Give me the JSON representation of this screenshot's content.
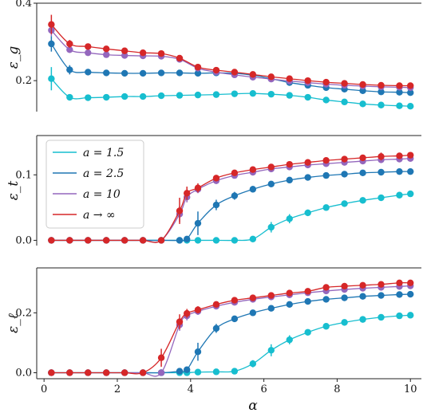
{
  "chart_data": {
    "type": "line",
    "xlabel": "α",
    "x_ticks": [
      0,
      2,
      4,
      6,
      8,
      10
    ],
    "xlim": [
      -0.2,
      10.3
    ],
    "legend": {
      "placement": "upper-left of middle panel",
      "entries": [
        "a = 1.5",
        "a = 2.5",
        "a = 10",
        "a → ∞"
      ]
    },
    "series_colors": [
      "#17becf",
      "#1f77b4",
      "#9467bd",
      "#d62728"
    ],
    "panels": [
      {
        "ylabel": "ε_g",
        "ylim": [
          0.12,
          0.4
        ],
        "y_ticks": [
          0.2,
          0.4
        ],
        "y_tick_labels": [
          "0.2",
          "0.4"
        ],
        "x": [
          0.2,
          0.7,
          1.2,
          1.7,
          2.2,
          2.7,
          3.2,
          3.7,
          4.2,
          4.7,
          5.2,
          5.7,
          6.2,
          6.7,
          7.2,
          7.7,
          8.2,
          8.7,
          9.2,
          9.7,
          10.0
        ],
        "series": [
          {
            "label": "a = 1.5",
            "color": "#17becf",
            "values": [
              0.205,
              0.157,
              0.156,
              0.157,
              0.159,
              0.159,
              0.161,
              0.162,
              0.163,
              0.164,
              0.166,
              0.167,
              0.165,
              0.162,
              0.157,
              0.15,
              0.145,
              0.14,
              0.137,
              0.135,
              0.134
            ],
            "errors": [
              0.03,
              0.006,
              0.005,
              0.004,
              0.004,
              0.004,
              0.004,
              0.004,
              0.004,
              0.004,
              0.004,
              0.004,
              0.004,
              0.004,
              0.004,
              0.004,
              0.004,
              0.004,
              0.004,
              0.004,
              0.004
            ]
          },
          {
            "label": "a = 2.5",
            "color": "#1f77b4",
            "values": [
              0.295,
              0.228,
              0.222,
              0.22,
              0.219,
              0.219,
              0.22,
              0.22,
              0.219,
              0.22,
              0.219,
              0.214,
              0.205,
              0.195,
              0.188,
              0.182,
              0.178,
              0.174,
              0.171,
              0.17,
              0.169
            ],
            "errors": [
              0.02,
              0.012,
              0.008,
              0.006,
              0.005,
              0.005,
              0.005,
              0.005,
              0.005,
              0.005,
              0.005,
              0.005,
              0.005,
              0.005,
              0.005,
              0.005,
              0.005,
              0.005,
              0.005,
              0.005,
              0.005
            ]
          },
          {
            "label": "a = 10",
            "color": "#9467bd",
            "values": [
              0.33,
              0.28,
              0.272,
              0.267,
              0.265,
              0.264,
              0.263,
              0.255,
              0.232,
              0.222,
              0.215,
              0.209,
              0.204,
              0.199,
              0.195,
              0.191,
              0.188,
              0.186,
              0.184,
              0.183,
              0.182
            ],
            "errors": [
              0.015,
              0.008,
              0.006,
              0.005,
              0.005,
              0.005,
              0.005,
              0.005,
              0.005,
              0.005,
              0.005,
              0.005,
              0.005,
              0.005,
              0.005,
              0.005,
              0.005,
              0.005,
              0.005,
              0.005,
              0.005
            ]
          },
          {
            "label": "a → ∞",
            "color": "#d62728",
            "values": [
              0.345,
              0.295,
              0.288,
              0.282,
              0.277,
              0.272,
              0.27,
              0.258,
              0.235,
              0.227,
              0.222,
              0.216,
              0.21,
              0.205,
              0.2,
              0.196,
              0.193,
              0.19,
              0.188,
              0.187,
              0.187
            ],
            "errors": [
              0.025,
              0.01,
              0.007,
              0.006,
              0.005,
              0.005,
              0.005,
              0.005,
              0.005,
              0.005,
              0.005,
              0.005,
              0.005,
              0.005,
              0.005,
              0.005,
              0.005,
              0.005,
              0.005,
              0.005,
              0.005
            ]
          }
        ]
      },
      {
        "ylabel": "ε_t",
        "ylim": [
          -0.008,
          0.16
        ],
        "y_ticks": [
          0.0,
          0.1
        ],
        "y_tick_labels": [
          "0.0",
          "0.1"
        ],
        "x": [
          0.2,
          0.7,
          1.2,
          1.7,
          2.2,
          2.7,
          3.2,
          3.7,
          3.9,
          4.2,
          4.7,
          5.2,
          5.7,
          6.2,
          6.7,
          7.2,
          7.7,
          8.2,
          8.7,
          9.2,
          9.7,
          10.0
        ],
        "series": [
          {
            "label": "a = 1.5",
            "color": "#17becf",
            "values": [
              0,
              0,
              0,
              0,
              0,
              0,
              0,
              0,
              0,
              0,
              0,
              0,
              0.002,
              0.02,
              0.033,
              0.042,
              0.05,
              0.056,
              0.061,
              0.065,
              0.069,
              0.071
            ],
            "errors": [
              0,
              0,
              0,
              0,
              0,
              0,
              0,
              0,
              0,
              0,
              0,
              0,
              0.003,
              0.008,
              0.007,
              0.005,
              0.004,
              0.004,
              0.004,
              0.004,
              0.004,
              0.004
            ]
          },
          {
            "label": "a = 2.5",
            "color": "#1f77b4",
            "values": [
              0,
              0,
              0,
              0,
              0,
              0,
              0,
              0,
              0.002,
              0.026,
              0.054,
              0.068,
              0.078,
              0.086,
              0.092,
              0.096,
              0.099,
              0.101,
              0.103,
              0.104,
              0.105,
              0.105
            ],
            "errors": [
              0,
              0,
              0,
              0,
              0,
              0,
              0,
              0,
              0.004,
              0.018,
              0.008,
              0.006,
              0.005,
              0.004,
              0.004,
              0.004,
              0.004,
              0.004,
              0.004,
              0.004,
              0.004,
              0.004
            ]
          },
          {
            "label": "a = 10",
            "color": "#9467bd",
            "values": [
              0,
              0,
              0,
              0,
              0,
              0,
              0,
              0.04,
              0.066,
              0.078,
              0.091,
              0.099,
              0.104,
              0.109,
              0.112,
              0.115,
              0.117,
              0.119,
              0.121,
              0.123,
              0.124,
              0.125
            ],
            "errors": [
              0,
              0,
              0,
              0,
              0,
              0,
              0,
              0.012,
              0.008,
              0.006,
              0.005,
              0.004,
              0.004,
              0.004,
              0.004,
              0.004,
              0.004,
              0.004,
              0.004,
              0.004,
              0.004,
              0.004
            ]
          },
          {
            "label": "a → ∞",
            "color": "#d62728",
            "values": [
              0,
              0,
              0,
              0,
              0,
              0,
              0,
              0.045,
              0.072,
              0.08,
              0.095,
              0.103,
              0.108,
              0.112,
              0.116,
              0.119,
              0.122,
              0.124,
              0.126,
              0.128,
              0.129,
              0.13
            ],
            "errors": [
              0,
              0,
              0,
              0,
              0,
              0,
              0,
              0.02,
              0.01,
              0.007,
              0.005,
              0.004,
              0.004,
              0.004,
              0.004,
              0.004,
              0.004,
              0.004,
              0.004,
              0.006,
              0.004,
              0.004
            ]
          }
        ]
      },
      {
        "ylabel": "ε_ℓ",
        "ylim": [
          -0.02,
          0.35
        ],
        "y_ticks": [
          0.0,
          0.2
        ],
        "y_tick_labels": [
          "0.0",
          "0.2"
        ],
        "x": [
          0.2,
          0.7,
          1.2,
          1.7,
          2.2,
          2.7,
          3.2,
          3.7,
          3.9,
          4.2,
          4.7,
          5.2,
          5.7,
          6.2,
          6.7,
          7.2,
          7.7,
          8.2,
          8.7,
          9.2,
          9.7,
          10.0
        ],
        "series": [
          {
            "label": "a = 1.5",
            "color": "#17becf",
            "values": [
              0,
              0,
              0,
              0,
              0,
              0,
              0,
              0,
              0,
              0.002,
              0.003,
              0.005,
              0.03,
              0.075,
              0.11,
              0.135,
              0.155,
              0.168,
              0.178,
              0.185,
              0.19,
              0.192
            ],
            "errors": [
              0,
              0,
              0,
              0,
              0,
              0,
              0,
              0,
              0,
              0.003,
              0.003,
              0.005,
              0.012,
              0.02,
              0.015,
              0.01,
              0.008,
              0.007,
              0.007,
              0.007,
              0.007,
              0.007
            ]
          },
          {
            "label": "a = 2.5",
            "color": "#1f77b4",
            "values": [
              0,
              0,
              0,
              0,
              0,
              0,
              0,
              0.005,
              0.01,
              0.07,
              0.148,
              0.18,
              0.2,
              0.215,
              0.228,
              0.238,
              0.245,
              0.25,
              0.255,
              0.258,
              0.261,
              0.262
            ],
            "errors": [
              0,
              0,
              0,
              0,
              0,
              0,
              0.003,
              0.005,
              0.008,
              0.03,
              0.015,
              0.01,
              0.008,
              0.008,
              0.008,
              0.008,
              0.008,
              0.008,
              0.008,
              0.008,
              0.008,
              0.008
            ]
          },
          {
            "label": "a = 10",
            "color": "#9467bd",
            "values": [
              0,
              0,
              0,
              0,
              0,
              0,
              0,
              0.16,
              0.19,
              0.205,
              0.222,
              0.235,
              0.245,
              0.253,
              0.26,
              0.267,
              0.273,
              0.278,
              0.282,
              0.285,
              0.288,
              0.29
            ],
            "errors": [
              0,
              0,
              0,
              0,
              0,
              0,
              0,
              0.02,
              0.015,
              0.012,
              0.01,
              0.008,
              0.008,
              0.008,
              0.008,
              0.008,
              0.008,
              0.008,
              0.008,
              0.008,
              0.008,
              0.008
            ]
          },
          {
            "label": "a → ∞",
            "color": "#d62728",
            "values": [
              0,
              0,
              0,
              0,
              0,
              0,
              0.05,
              0.17,
              0.198,
              0.21,
              0.228,
              0.242,
              0.25,
              0.258,
              0.266,
              0.272,
              0.285,
              0.289,
              0.292,
              0.295,
              0.3,
              0.3
            ],
            "errors": [
              0,
              0,
              0,
              0,
              0,
              0,
              0.03,
              0.025,
              0.015,
              0.012,
              0.01,
              0.008,
              0.008,
              0.008,
              0.008,
              0.008,
              0.008,
              0.008,
              0.008,
              0.008,
              0.008,
              0.008
            ]
          }
        ]
      }
    ]
  }
}
